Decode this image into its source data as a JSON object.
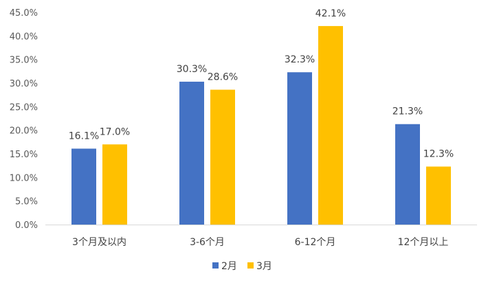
{
  "chart_data": {
    "type": "bar",
    "categories": [
      "3个月及以内",
      "3-6个月",
      "6-12个月",
      "12个月以上"
    ],
    "series": [
      {
        "name": "2月",
        "values": [
          16.1,
          30.3,
          32.3,
          21.3
        ],
        "labels": [
          "16.1%",
          "30.3%",
          "32.3%",
          "21.3%"
        ],
        "color": "#4472C4"
      },
      {
        "name": "3月",
        "values": [
          17.0,
          28.6,
          42.1,
          12.3
        ],
        "labels": [
          "17.0%",
          "28.6%",
          "42.1%",
          "12.3%"
        ],
        "color": "#FFC000"
      }
    ],
    "ylim": [
      0,
      45
    ],
    "yticks": [
      0,
      5,
      10,
      15,
      20,
      25,
      30,
      35,
      40,
      45
    ],
    "ytick_labels": [
      "0.0%",
      "5.0%",
      "10.0%",
      "15.0%",
      "20.0%",
      "25.0%",
      "30.0%",
      "35.0%",
      "40.0%",
      "45.0%"
    ],
    "title": "",
    "xlabel": "",
    "ylabel": "",
    "grid": false,
    "legend": "bottom-center",
    "axis_color": "#D9D9D9"
  }
}
